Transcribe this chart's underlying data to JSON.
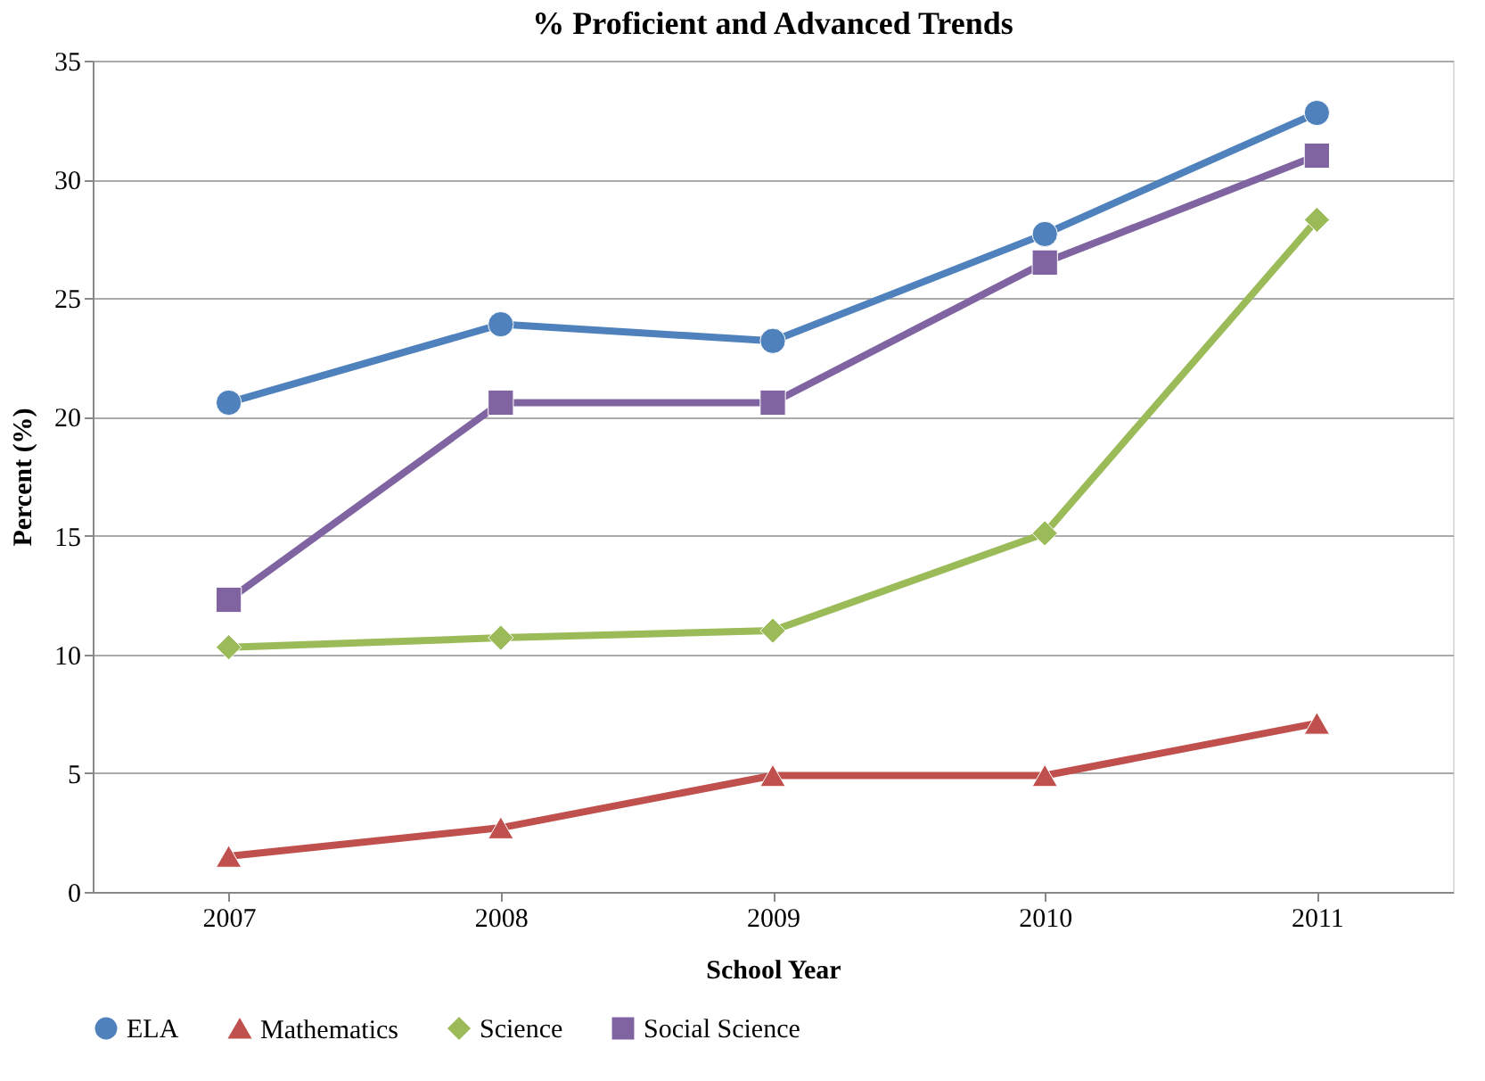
{
  "chart_data": {
    "type": "line",
    "title": "% Proficient and Advanced Trends",
    "xlabel": "School Year",
    "ylabel": "Percent (%)",
    "categories": [
      "2007",
      "2008",
      "2009",
      "2010",
      "2011"
    ],
    "series": [
      {
        "name": "ELA",
        "color": "#4f81bd",
        "marker": "circle",
        "values": [
          20.6,
          23.9,
          23.2,
          27.7,
          32.8
        ]
      },
      {
        "name": "Mathematics",
        "color": "#c0504d",
        "marker": "triangle",
        "values": [
          1.5,
          2.7,
          4.9,
          4.9,
          7.1
        ]
      },
      {
        "name": "Science",
        "color": "#9bbb59",
        "marker": "diamond",
        "values": [
          10.3,
          10.7,
          11.0,
          15.1,
          28.3
        ]
      },
      {
        "name": "Social Science",
        "color": "#8064a2",
        "marker": "square",
        "values": [
          12.3,
          20.6,
          20.6,
          26.5,
          31.0
        ]
      }
    ],
    "ylim": [
      0,
      35
    ],
    "yticks": [
      0,
      5,
      10,
      15,
      20,
      25,
      30,
      35
    ],
    "grid": "y",
    "legend": "bottom",
    "line_style": "solid"
  }
}
